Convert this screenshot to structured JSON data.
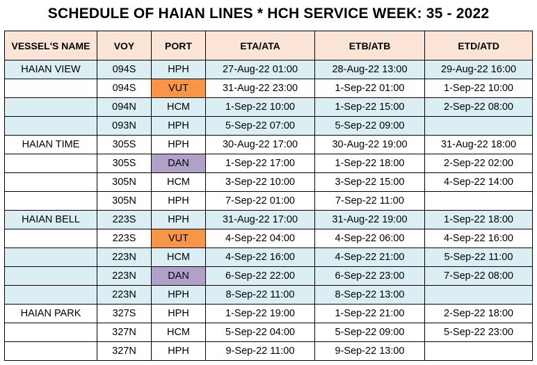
{
  "title": "SCHEDULE OF HAIAN LINES * HCH SERVICE WEEK: 35 - 2022",
  "columns": [
    "VESSEL'S NAME",
    "VOY",
    "PORT",
    "ETA/ATA",
    "ETB/ATB",
    "ETD/ATD"
  ],
  "colors": {
    "header": "#fce4d6",
    "shade": "#daeef3",
    "vut": "#f79646",
    "dan": "#b1a0c7"
  },
  "rows": [
    {
      "vessel": "HAIAN VIEW",
      "voy": "094S",
      "port": "HPH",
      "eta": "27-Aug-22 01:00",
      "etb": "28-Aug-22 13:00",
      "etd": "29-Aug-22 16:00"
    },
    {
      "vessel": "",
      "voy": "094S",
      "port": "VUT",
      "eta": "31-Aug-22 23:00",
      "etb": "1-Sep-22 01:00",
      "etd": "1-Sep-22 10:00"
    },
    {
      "vessel": "",
      "voy": "094N",
      "port": "HCM",
      "eta": "1-Sep-22 10:00",
      "etb": "1-Sep-22 15:00",
      "etd": "2-Sep-22 08:00"
    },
    {
      "vessel": "",
      "voy": "093N",
      "port": "HPH",
      "eta": "5-Sep-22 07:00",
      "etb": "5-Sep-22 09:00",
      "etd": ""
    },
    {
      "vessel": "HAIAN TIME",
      "voy": "305S",
      "port": "HPH",
      "eta": "30-Aug-22 17:00",
      "etb": "30-Aug-22 19:00",
      "etd": "31-Aug-22 18:00"
    },
    {
      "vessel": "",
      "voy": "305S",
      "port": "DAN",
      "eta": "1-Sep-22 17:00",
      "etb": "1-Sep-22 18:00",
      "etd": "2-Sep-22 02:00"
    },
    {
      "vessel": "",
      "voy": "305N",
      "port": "HCM",
      "eta": "3-Sep-22 10:00",
      "etb": "3-Sep-22 15:00",
      "etd": "4-Sep-22 14:00"
    },
    {
      "vessel": "",
      "voy": "305N",
      "port": "HPH",
      "eta": "7-Sep-22 01:00",
      "etb": "7-Sep-22 11:00",
      "etd": ""
    },
    {
      "vessel": "HAIAN BELL",
      "voy": "223S",
      "port": "HPH",
      "eta": "31-Aug-22 17:00",
      "etb": "31-Aug-22 19:00",
      "etd": "1-Sep-22 18:00"
    },
    {
      "vessel": "",
      "voy": "223S",
      "port": "VUT",
      "eta": "4-Sep-22 04:00",
      "etb": "4-Sep-22 06:00",
      "etd": "4-Sep-22 16:00"
    },
    {
      "vessel": "",
      "voy": "223N",
      "port": "HCM",
      "eta": "4-Sep-22 16:00",
      "etb": "4-Sep-22 21:00",
      "etd": "5-Sep-22 11:00"
    },
    {
      "vessel": "",
      "voy": "223N",
      "port": "DAN",
      "eta": "6-Sep-22 22:00",
      "etb": "6-Sep-22 23:00",
      "etd": "7-Sep-22 08:00"
    },
    {
      "vessel": "",
      "voy": "223N",
      "port": "HPH",
      "eta": "8-Sep-22 11:00",
      "etb": "8-Sep-22 13:00",
      "etd": ""
    },
    {
      "vessel": "HAIAN PARK",
      "voy": "327S",
      "port": "HPH",
      "eta": "1-Sep-22 19:00",
      "etb": "1-Sep-22 21:00",
      "etd": "2-Sep-22 18:00"
    },
    {
      "vessel": "",
      "voy": "327N",
      "port": "HCM",
      "eta": "5-Sep-22 04:00",
      "etb": "5-Sep-22 09:00",
      "etd": "5-Sep-22 23:00"
    },
    {
      "vessel": "",
      "voy": "327N",
      "port": "HPH",
      "eta": "9-Sep-22 11:00",
      "etb": "9-Sep-22 13:00",
      "etd": ""
    }
  ]
}
